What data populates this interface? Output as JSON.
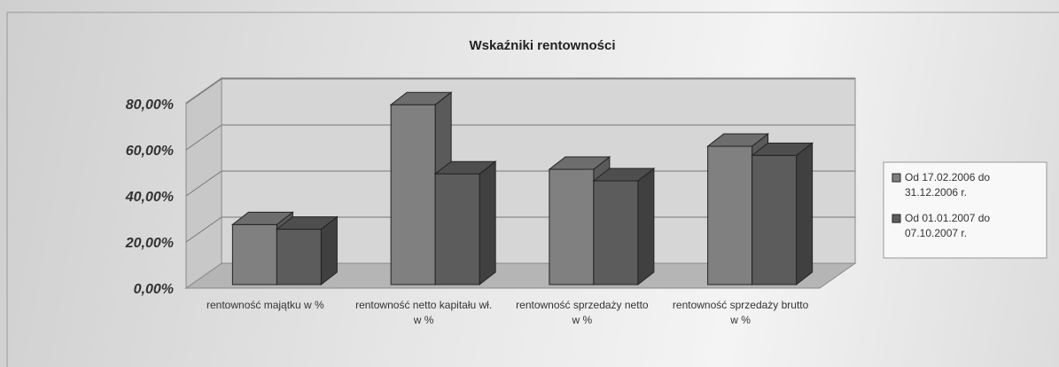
{
  "chart_data": {
    "type": "bar3d",
    "title": "Wskaźniki rentowności",
    "categories": [
      "rentowność majątku w %",
      "rentowność netto kapitału wł. w %",
      "rentowność sprzedaży netto w %",
      "rentowność sprzedaży brutto w %"
    ],
    "series": [
      {
        "name": "Od 17.02.2006 do 31.12.2006 r.",
        "color": "#808080",
        "values": [
          26,
          78,
          50,
          60
        ]
      },
      {
        "name": "Od 01.01.2007 do 07.10.2007 r.",
        "color": "#5c5c5c",
        "values": [
          24,
          48,
          45,
          56
        ]
      }
    ],
    "ylim": [
      0,
      80
    ],
    "yticks": [
      {
        "value": 0,
        "label": "0,00%"
      },
      {
        "value": 20,
        "label": "20,00%"
      },
      {
        "value": 40,
        "label": "40,00%"
      },
      {
        "value": 60,
        "label": "60,00%"
      },
      {
        "value": 80,
        "label": "80,00%"
      }
    ],
    "grid": true,
    "legend": "right"
  }
}
